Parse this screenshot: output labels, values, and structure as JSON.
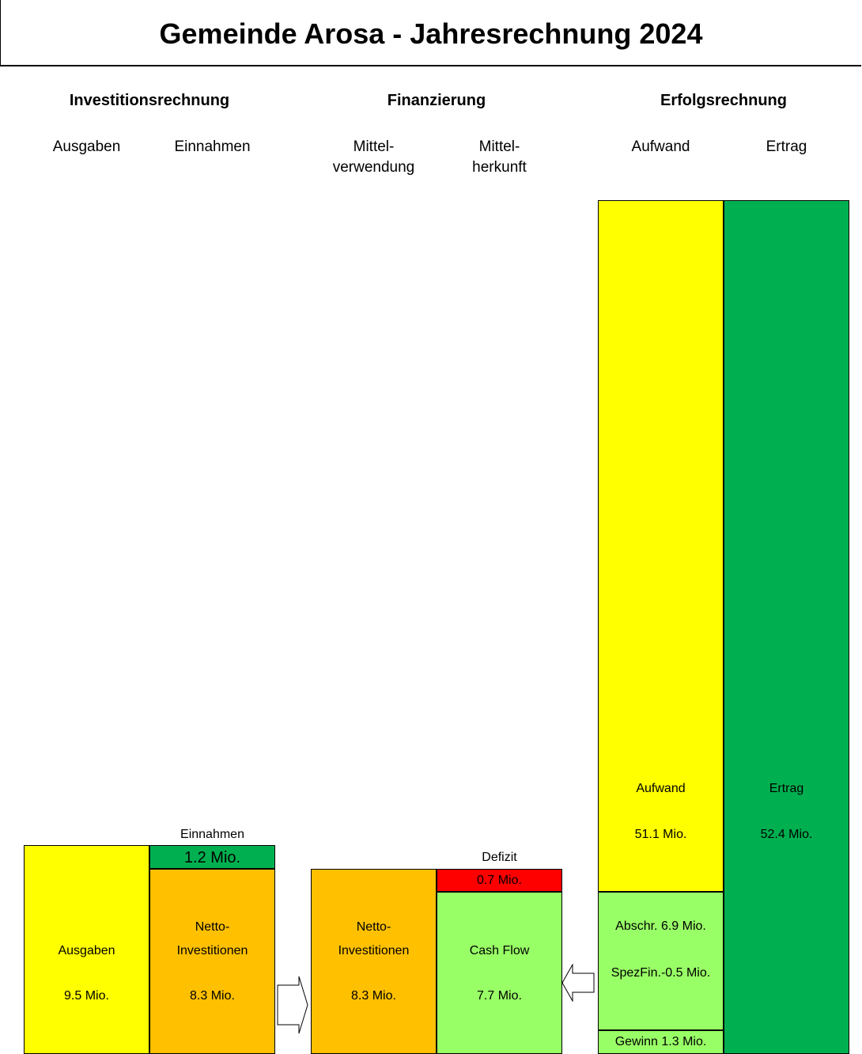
{
  "title": "Gemeinde Arosa - Jahresrechnung 2024",
  "sections": {
    "investition": "Investitionsrechnung",
    "finanzierung": "Finanzierung",
    "erfolg": "Erfolgsrechnung"
  },
  "columns": {
    "ausgaben": "Ausgaben",
    "einnahmen": "Einnahmen",
    "mittelverwendung": "Mittel-\nverwendung",
    "mittelherkunft": "Mittel-\nherkunft",
    "aufwand": "Aufwand",
    "ertrag": "Ertrag"
  },
  "colors": {
    "yellow": "#FFFF00",
    "orange": "#FFC000",
    "dark_green": "#00B050",
    "light_green": "#99FF66",
    "red": "#FF0000"
  },
  "labels": {
    "einnahmen_caption": "Einnahmen",
    "defizit_caption": "Defizit",
    "ausgaben_name": "Ausgaben",
    "ausgaben_value": "9.5 Mio.",
    "einnahmen_value": "1.2 Mio.",
    "netto_inv_name": "Netto-\nInvestitionen",
    "netto_inv_value": "8.3 Mio.",
    "netto_inv2_name": "Netto-\nInvestitionen",
    "netto_inv2_value": "8.3 Mio.",
    "defizit_value": "0.7 Mio.",
    "cashflow_name": "Cash Flow",
    "cashflow_value": "7.7 Mio.",
    "aufwand_name": "Aufwand",
    "aufwand_value": "51.1 Mio.",
    "ertrag_name": "Ertrag",
    "ertrag_value": "52.4 Mio.",
    "abschr": "Abschr. 6.9 Mio.",
    "spezfin": "SpezFin.-0.5 Mio.",
    "gewinn": "Gewinn 1.3 Mio."
  },
  "chart_data": {
    "type": "bar",
    "title": "Gemeinde Arosa - Jahresrechnung 2024",
    "unit": "Mio.",
    "stacked": true,
    "groups": [
      {
        "name": "Investitionsrechnung",
        "bars": [
          {
            "name": "Ausgaben",
            "segments": [
              {
                "label": "Ausgaben",
                "value": 9.5
              }
            ]
          },
          {
            "name": "Einnahmen",
            "segments": [
              {
                "label": "Netto-Investitionen",
                "value": 8.3
              },
              {
                "label": "Einnahmen",
                "value": 1.2
              }
            ]
          }
        ]
      },
      {
        "name": "Finanzierung",
        "bars": [
          {
            "name": "Mittelverwendung",
            "segments": [
              {
                "label": "Netto-Investitionen",
                "value": 8.3
              }
            ]
          },
          {
            "name": "Mittelherkunft",
            "segments": [
              {
                "label": "Cash Flow",
                "value": 7.7
              },
              {
                "label": "Defizit",
                "value": 0.7
              }
            ]
          }
        ]
      },
      {
        "name": "Erfolgsrechnung",
        "bars": [
          {
            "name": "Aufwand",
            "segments": [
              {
                "label": "Gewinn",
                "value": 1.3
              },
              {
                "label": "Abschr.",
                "value": 6.9
              },
              {
                "label": "SpezFin.",
                "value": -0.5
              },
              {
                "label": "Aufwand",
                "value": 51.1
              }
            ]
          },
          {
            "name": "Ertrag",
            "segments": [
              {
                "label": "Ertrag",
                "value": 52.4
              }
            ]
          }
        ]
      }
    ]
  }
}
